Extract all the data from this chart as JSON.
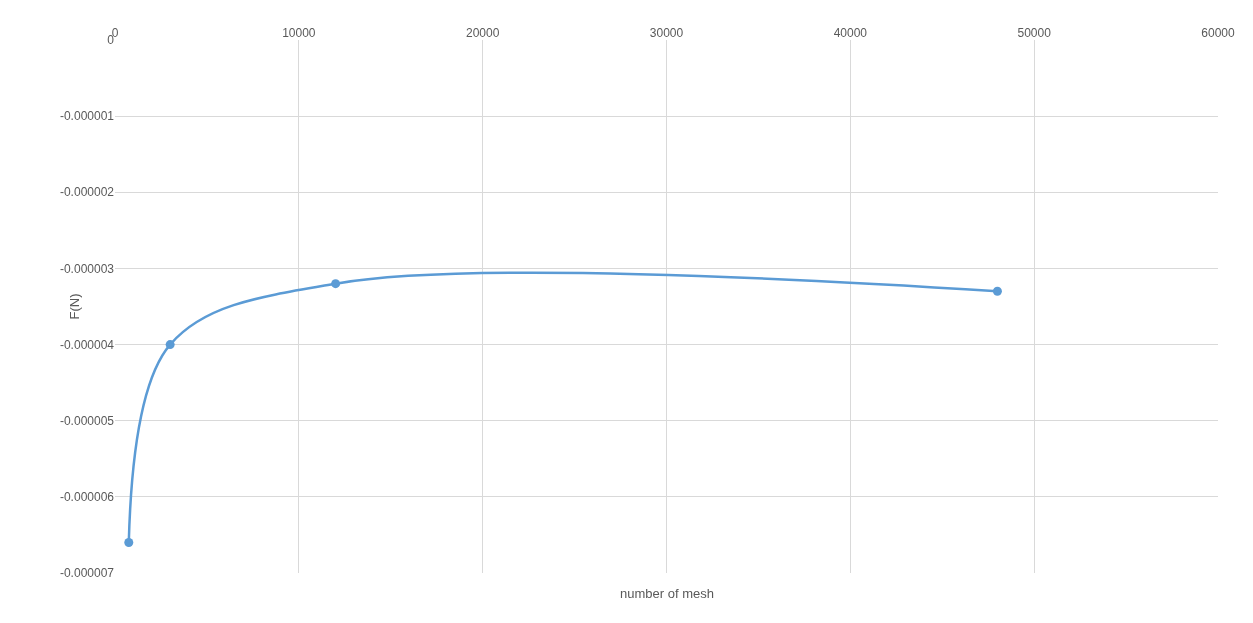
{
  "chart_data": {
    "type": "line",
    "xlabel": "number of mesh",
    "ylabel": "F(N)",
    "x": [
      750,
      3000,
      12000,
      48000
    ],
    "series": [
      {
        "color": "#5b9bd5",
        "values": [
          -6.6e-06,
          -4e-06,
          -3.2e-06,
          -3.3e-06
        ]
      }
    ],
    "xlim": [
      0,
      60000
    ],
    "xticks": [
      0,
      10000,
      20000,
      30000,
      40000,
      50000,
      60000
    ],
    "ylim": [
      -7e-06,
      0
    ],
    "yticks": [
      0,
      {
        "value": -1e-06,
        "label": "-0.000001"
      },
      {
        "value": -2e-06,
        "label": "-0.000002"
      },
      {
        "value": -3e-06,
        "label": "-0.000003"
      },
      {
        "value": -4e-06,
        "label": "-0.000004"
      },
      {
        "value": -5e-06,
        "label": "-0.000005"
      },
      {
        "value": -6e-06,
        "label": "-0.000006"
      },
      {
        "value": -7e-06,
        "label": "-0.000007"
      }
    ],
    "grid": true,
    "marker": "circle",
    "line_style": "solid"
  }
}
